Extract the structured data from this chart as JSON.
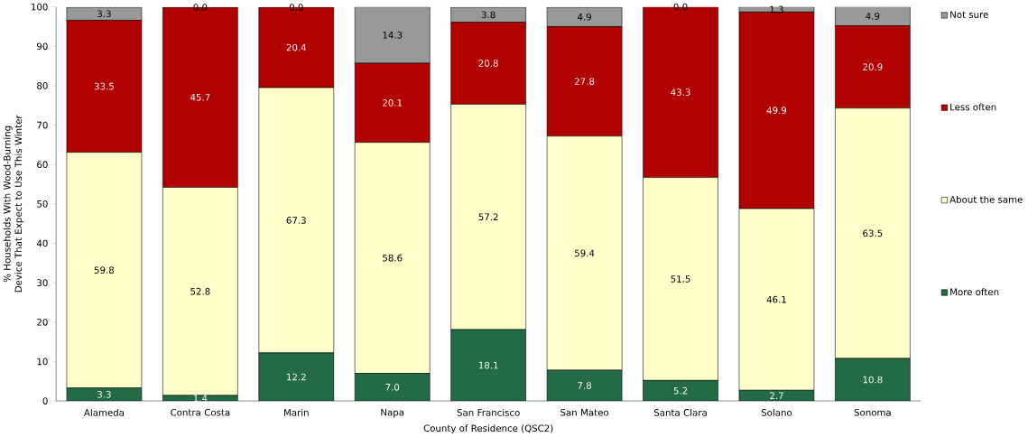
{
  "chart_data": {
    "type": "bar",
    "stacked": true,
    "xlabel": "County of Residence (QSC2)",
    "ylabel": "% Households With Wood-Burning Device That Expect to Use This Winter",
    "categories": [
      "Alameda",
      "Contra Costa",
      "Marin",
      "Napa",
      "San Francisco",
      "San Mateo",
      "Santa Clara",
      "Solano",
      "Sonoma"
    ],
    "series": [
      {
        "name": "More often",
        "color": "#236b45",
        "values": [
          3.3,
          1.4,
          12.2,
          7.0,
          18.1,
          7.8,
          5.2,
          2.7,
          10.8
        ],
        "value_labels": [
          "3.3",
          "1.4",
          "12.2",
          "7.0",
          "18.1",
          "7.8",
          "5.2",
          "2.7",
          "10.8"
        ]
      },
      {
        "name": "About the same",
        "color": "#ffffcc",
        "values": [
          59.8,
          52.8,
          67.3,
          58.6,
          57.2,
          59.4,
          51.5,
          46.1,
          63.5
        ],
        "value_labels": [
          "59.8",
          "52.8",
          "67.3",
          "58.6",
          "57.2",
          "59.4",
          "51.5",
          "46.1",
          "63.5"
        ]
      },
      {
        "name": "Less often",
        "color": "#b00000",
        "values": [
          33.5,
          45.7,
          20.4,
          20.1,
          20.8,
          27.8,
          43.3,
          49.9,
          20.9
        ],
        "value_labels": [
          "33.5",
          "45.7",
          "20.4",
          "20.1",
          "20.8",
          "27.8",
          "43.3",
          "49.9",
          "20.9"
        ]
      },
      {
        "name": "Not sure",
        "color": "#999999",
        "values": [
          3.3,
          0.0,
          0.0,
          14.3,
          3.8,
          4.9,
          0.0,
          1.3,
          4.9
        ],
        "value_labels": [
          "3.3",
          "0.0",
          "0.0",
          "14.3",
          "3.8",
          "4.9",
          "0.0",
          "1.3",
          "4.9"
        ]
      }
    ],
    "ylim": [
      0,
      100
    ],
    "yticks": [
      0,
      10,
      20,
      30,
      40,
      50,
      60,
      70,
      80,
      90,
      100
    ],
    "legend": "right"
  }
}
